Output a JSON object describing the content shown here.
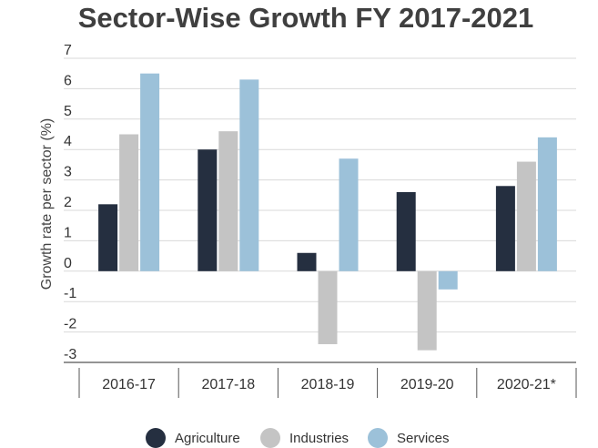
{
  "chart_data": {
    "type": "bar",
    "title": "Sector-Wise Growth FY 2017-2021",
    "xlabel": "",
    "ylabel": "Growth rate per sector (%)",
    "categories": [
      "2016-17",
      "2017-18",
      "2018-19",
      "2019-20",
      "2020-21*"
    ],
    "ylim": [
      -3,
      7
    ],
    "yticks": [
      7,
      6,
      5,
      4,
      3,
      2,
      1,
      0,
      -1,
      -2,
      -3
    ],
    "grid": true,
    "legend_position": "bottom",
    "series": [
      {
        "name": "Agriculture",
        "color": "#252f40",
        "values": [
          2.2,
          4.0,
          0.6,
          2.6,
          2.8
        ]
      },
      {
        "name": "Industries",
        "color": "#c4c4c4",
        "values": [
          4.5,
          4.6,
          -2.4,
          -2.6,
          3.6
        ]
      },
      {
        "name": "Services",
        "color": "#9cc1d9",
        "values": [
          6.5,
          6.3,
          3.7,
          -0.6,
          4.4
        ]
      }
    ]
  }
}
